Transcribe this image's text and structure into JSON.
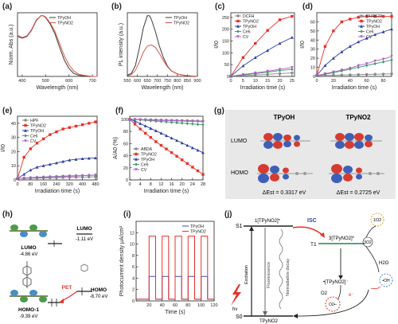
{
  "chart_data": [
    {
      "panel": "(a)",
      "type": "line",
      "xlabel": "Wavelength (nm)",
      "ylabel": "Norm. Abs (a.u.)",
      "xlim": [
        380,
        720
      ],
      "ylim": [
        0,
        1.05
      ],
      "xticks": [
        "400",
        "500",
        "600",
        "700"
      ],
      "series": [
        {
          "name": "TPyOH",
          "color": "#3a3a3a",
          "x": [
            380,
            400,
            420,
            440,
            460,
            480,
            490,
            500,
            520,
            540,
            560,
            580,
            600,
            620,
            640,
            660,
            700,
            720
          ],
          "y": [
            0.66,
            0.63,
            0.66,
            0.76,
            0.92,
            1.0,
            1.0,
            0.97,
            0.86,
            0.7,
            0.48,
            0.27,
            0.13,
            0.05,
            0.02,
            0.01,
            0.0,
            0.0
          ]
        },
        {
          "name": "TPyNO2",
          "color": "#e0564b",
          "x": [
            380,
            400,
            420,
            440,
            460,
            480,
            490,
            500,
            520,
            540,
            560,
            580,
            600,
            620,
            640,
            660,
            700,
            720
          ],
          "y": [
            0.68,
            0.64,
            0.67,
            0.77,
            0.93,
            1.0,
            1.0,
            0.98,
            0.88,
            0.74,
            0.54,
            0.34,
            0.19,
            0.09,
            0.04,
            0.02,
            0.0,
            0.0
          ]
        }
      ]
    },
    {
      "panel": "(b)",
      "type": "line",
      "xlabel": "Wavelength (nm)",
      "ylabel": "PL intensity (a.u.)",
      "xlim": [
        550,
        900
      ],
      "ylim": [
        0,
        1.05
      ],
      "xticks": [
        "550",
        "600",
        "650",
        "700",
        "750",
        "800",
        "850",
        "900"
      ],
      "series": [
        {
          "name": "TPyOH",
          "color": "#3a3a3a",
          "x": [
            550,
            570,
            590,
            610,
            630,
            650,
            660,
            670,
            690,
            710,
            730,
            750,
            770,
            800,
            830,
            860,
            900
          ],
          "y": [
            0.02,
            0.05,
            0.18,
            0.47,
            0.8,
            1.0,
            1.0,
            0.94,
            0.74,
            0.5,
            0.31,
            0.17,
            0.09,
            0.04,
            0.02,
            0.01,
            0.0
          ]
        },
        {
          "name": "TPyNO2",
          "color": "#e0564b",
          "x": [
            550,
            570,
            590,
            610,
            630,
            650,
            670,
            690,
            710,
            730,
            750,
            770,
            800,
            830,
            860,
            900
          ],
          "y": [
            0.01,
            0.03,
            0.1,
            0.24,
            0.4,
            0.5,
            0.52,
            0.48,
            0.38,
            0.26,
            0.16,
            0.09,
            0.04,
            0.02,
            0.01,
            0.0
          ]
        }
      ]
    },
    {
      "panel": "(c)",
      "type": "line",
      "xlabel": "Irradiation time (s)",
      "ylabel": "I/I0",
      "xlim": [
        0,
        26
      ],
      "ylim": [
        0,
        270
      ],
      "xticks": [
        "0",
        "5",
        "10",
        "15",
        "20",
        "25"
      ],
      "yticks": [
        "0",
        "50",
        "100",
        "150",
        "200",
        "250"
      ],
      "x": [
        0,
        5,
        10,
        15,
        20,
        25
      ],
      "series": [
        {
          "name": "DCFH",
          "color": "#888888",
          "values": [
            1,
            3,
            6,
            9,
            12,
            15
          ]
        },
        {
          "name": "TPyNO2",
          "color": "#e8312a",
          "values": [
            1,
            80,
            140,
            195,
            240,
            255
          ]
        },
        {
          "name": "TPyOH",
          "color": "#2f3e9e",
          "values": [
            1,
            45,
            80,
            110,
            140,
            165
          ]
        },
        {
          "name": "Ce6",
          "color": "#3d9a6a",
          "values": [
            1,
            6,
            12,
            18,
            25,
            30
          ]
        },
        {
          "name": "CV",
          "color": "#b05dc4",
          "values": [
            1,
            8,
            15,
            22,
            30,
            38
          ]
        }
      ]
    },
    {
      "panel": "(d)",
      "type": "line",
      "xlabel": "Irradiation time (s)",
      "ylabel": "I/I0",
      "xlim": [
        0,
        90
      ],
      "ylim": [
        0,
        70
      ],
      "xticks": [
        "0",
        "20",
        "40",
        "60",
        "80"
      ],
      "yticks": [
        "0",
        "10",
        "20",
        "30",
        "40",
        "50",
        "60"
      ],
      "x": [
        0,
        10,
        20,
        30,
        40,
        50,
        60,
        70,
        80,
        90
      ],
      "series": [
        {
          "name": "DHR123",
          "color": "#888888",
          "values": [
            1,
            1.2,
            1.4,
            1.6,
            1.8,
            2,
            2.2,
            2.4,
            2.6,
            2.8
          ]
        },
        {
          "name": "TPyNO2",
          "color": "#e8312a",
          "values": [
            1,
            33,
            50,
            60,
            63,
            65,
            66,
            66,
            66,
            66
          ]
        },
        {
          "name": "TPyOH",
          "color": "#2f3e9e",
          "values": [
            1,
            12,
            20,
            27,
            33,
            38,
            42,
            46,
            49,
            52
          ]
        },
        {
          "name": "Ce6",
          "color": "#3d9a6a",
          "values": [
            1,
            2.5,
            4,
            6,
            8,
            10,
            12,
            14,
            16,
            18
          ]
        },
        {
          "name": "CV",
          "color": "#b05dc4",
          "values": [
            1,
            3,
            5,
            7,
            9,
            12,
            14,
            17,
            19,
            22
          ]
        }
      ]
    },
    {
      "panel": "(e)",
      "type": "line",
      "xlabel": "Irradiation time (s)",
      "ylabel": "I/I0",
      "xlim": [
        0,
        490
      ],
      "ylim": [
        0,
        45
      ],
      "xticks": [
        "0",
        "80",
        "160",
        "240",
        "320",
        "400",
        "480"
      ],
      "yticks": [
        "0",
        "10",
        "20",
        "30",
        "40"
      ],
      "x": [
        0,
        40,
        80,
        120,
        160,
        200,
        240,
        280,
        320,
        360,
        400,
        440,
        480
      ],
      "series": [
        {
          "name": "HPF",
          "color": "#888888",
          "values": [
            1,
            1.1,
            1.2,
            1.3,
            1.4,
            1.5,
            1.6,
            1.7,
            1.8,
            1.9,
            2,
            2.1,
            2.2
          ]
        },
        {
          "name": "TPyNO2",
          "color": "#e8312a",
          "values": [
            1,
            16,
            22,
            26,
            29,
            32,
            34,
            36,
            37,
            38,
            39,
            40,
            41
          ]
        },
        {
          "name": "TPyOH",
          "color": "#2f3e9e",
          "values": [
            1,
            4,
            7,
            9,
            10,
            11,
            12,
            13,
            14,
            14.5,
            15,
            15.3,
            15.5
          ]
        },
        {
          "name": "Ce6",
          "color": "#3d9a6a",
          "values": [
            1,
            1.3,
            1.6,
            1.9,
            2.1,
            2.3,
            2.5,
            2.7,
            2.9,
            3.0,
            3.1,
            3.2,
            3.3
          ]
        },
        {
          "name": "CV",
          "color": "#b05dc4",
          "values": [
            1,
            1.2,
            1.4,
            1.6,
            1.8,
            2.0,
            2.2,
            2.4,
            2.6,
            2.8,
            3.0,
            3.2,
            3.4
          ]
        }
      ]
    },
    {
      "panel": "(f)",
      "type": "line",
      "xlabel": "Irradiation time (s)",
      "ylabel": "A/A0 (%)",
      "xlim": [
        0,
        28
      ],
      "ylim": [
        0,
        105
      ],
      "xticks": [
        "0",
        "4",
        "8",
        "12",
        "16",
        "20",
        "24",
        "28"
      ],
      "yticks": [
        "0",
        "20",
        "40",
        "60",
        "80",
        "100"
      ],
      "x": [
        0,
        2,
        4,
        6,
        8,
        10,
        12,
        14,
        16,
        18,
        20,
        22,
        24,
        26,
        28
      ],
      "series": [
        {
          "name": "ABDA",
          "color": "#888888",
          "values": [
            100,
            99.8,
            99.6,
            99.4,
            99.2,
            99,
            98.8,
            98.6,
            98.4,
            98.2,
            98,
            97.8,
            97.6,
            97.4,
            97.2
          ]
        },
        {
          "name": "TPyNO2",
          "color": "#e8312a",
          "values": [
            100,
            92,
            84,
            77,
            70,
            63,
            57,
            51,
            45,
            39,
            33,
            27,
            21,
            15,
            9
          ]
        },
        {
          "name": "TPyOH",
          "color": "#2f3e9e",
          "values": [
            100,
            97,
            93,
            89,
            85,
            81,
            77,
            73,
            69,
            65,
            61,
            57,
            53,
            49,
            45
          ]
        },
        {
          "name": "Ce6",
          "color": "#3d9a6a",
          "values": [
            100,
            99.5,
            99,
            98.3,
            97.6,
            97,
            96.3,
            95.6,
            95,
            94.3,
            93.6,
            93,
            92.3,
            91.6,
            91
          ]
        },
        {
          "name": "CV",
          "color": "#b05dc4",
          "values": [
            100,
            99.7,
            99.4,
            99.1,
            98.8,
            98.5,
            98.2,
            97.9,
            97.6,
            97.3,
            97,
            96.7,
            96.4,
            96.1,
            95.8
          ]
        }
      ]
    },
    {
      "panel": "(i)",
      "type": "line",
      "xlabel": "Time (s)",
      "ylabel": "Photocurrent density μA/cm²",
      "xlim": [
        0,
        120
      ],
      "ylim": [
        0,
        14
      ],
      "xticks": [
        "20",
        "40",
        "60",
        "80",
        "100",
        "120"
      ],
      "yticks": [
        "0",
        "2",
        "4",
        "6",
        "8",
        "10",
        "12"
      ],
      "series": [
        {
          "name": "TPyOH",
          "color": "#3b4fb5",
          "off": 0.3,
          "on": 4.3
        },
        {
          "name": "TPyNO2",
          "color": "#e8312a",
          "off": 0.3,
          "on": 11.4
        }
      ],
      "on_intervals": [
        [
          20,
          30
        ],
        [
          40,
          50
        ],
        [
          60,
          70
        ],
        [
          80,
          90
        ],
        [
          100,
          110
        ]
      ]
    }
  ],
  "panel_g": {
    "label": "(g)",
    "col_tpyoh": "TPyOH",
    "col_tpyno2": "TPyNO2",
    "lumo": "LUMO",
    "homo": "HOMO",
    "est_tpyoh": "ΔEst = 0.3317 eV",
    "est_tpyno2": "ΔEst = 0.2725 eV",
    "colors": {
      "bg": "#e8e8e8",
      "lobe_red": "#d63b30",
      "lobe_blue": "#3d5fb8"
    }
  },
  "panel_h": {
    "label": "(h)",
    "lumo_left": "LUMO",
    "lumo_left_e": "-4.86 eV",
    "homo_left": "HOMO-1",
    "homo_left_e": "-9.39 eV",
    "lumo_right": "LUMO",
    "lumo_right_e": "-1.11 eV",
    "homo_right": "HOMO",
    "homo_right_e": "-8.70 eV",
    "pet": "PET"
  },
  "panel_j": {
    "label": "(j)",
    "s1": "S1",
    "s0": "S0",
    "t1": "T1",
    "s1_state": "1[TPyNO2]*",
    "t1_state": "3[TPyNO2]*",
    "anion": "•[TPyNO2]⁻",
    "ground": "TPyNO2",
    "isc": "ISC",
    "excitation": "Excitation",
    "fluorescence": "Fluorescence",
    "nonradiative": "Nonradiative decay",
    "hv": "hν",
    "o2_singlet": "1O2",
    "o2_triplet": "3O2",
    "o2": "O2",
    "h2o": "H2O",
    "oh": "•OH",
    "superoxide": "O2•-",
    "electron": "e⁻"
  }
}
